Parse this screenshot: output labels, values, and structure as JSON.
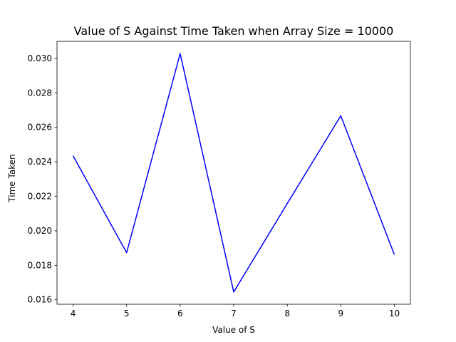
{
  "chart_data": {
    "type": "line",
    "title": "Value of S Against Time Taken when Array Size = 10000",
    "xlabel": "Value of S",
    "ylabel": "Time Taken",
    "x": [
      4,
      5,
      6,
      7,
      8,
      9,
      10
    ],
    "series": [
      {
        "values": [
          0.02435,
          0.01873,
          0.03028,
          0.01645,
          0.02158,
          0.02667,
          0.01862
        ],
        "color": "#0000ff"
      }
    ],
    "xlim": [
      3.7,
      10.3
    ],
    "ylim": [
      0.01574,
      0.03099
    ],
    "xticks": [
      4,
      5,
      6,
      7,
      8,
      9,
      10
    ],
    "xtick_labels": [
      "4",
      "5",
      "6",
      "7",
      "8",
      "9",
      "10"
    ],
    "yticks": [
      0.016,
      0.018,
      0.02,
      0.022,
      0.024,
      0.026,
      0.028,
      0.03
    ],
    "ytick_labels": [
      "0.016",
      "0.018",
      "0.020",
      "0.022",
      "0.024",
      "0.026",
      "0.028",
      "0.030"
    ],
    "grid": false,
    "legend": "none"
  }
}
